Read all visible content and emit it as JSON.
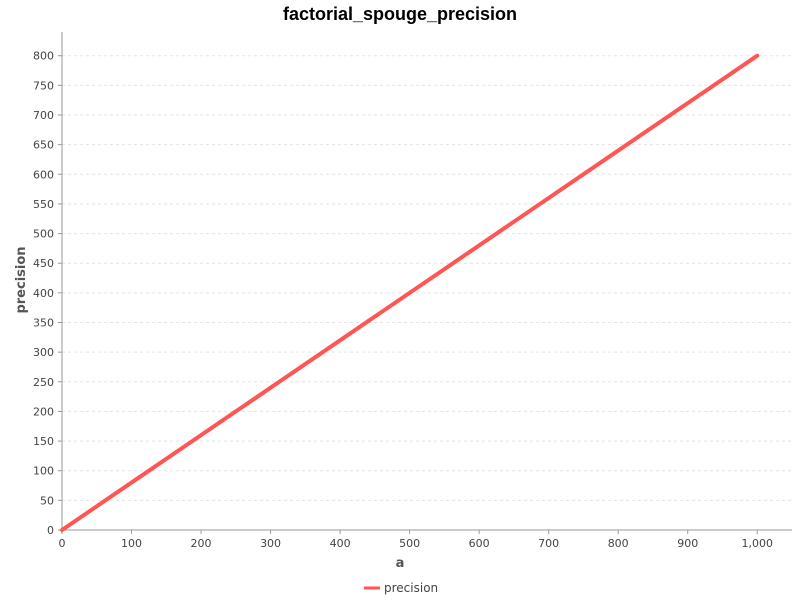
{
  "chart_data": {
    "type": "line",
    "title": "factorial_spouge_precision",
    "xlabel": "a",
    "ylabel": "precision",
    "xlim": [
      0,
      1050
    ],
    "ylim": [
      0,
      840
    ],
    "x_ticks": [
      0,
      100,
      200,
      300,
      400,
      500,
      600,
      700,
      800,
      900,
      1000
    ],
    "x_tick_labels": [
      "0",
      "100",
      "200",
      "300",
      "400",
      "500",
      "600",
      "700",
      "800",
      "900",
      "1,000"
    ],
    "y_ticks": [
      0,
      50,
      100,
      150,
      200,
      250,
      300,
      350,
      400,
      450,
      500,
      550,
      600,
      650,
      700,
      750,
      800
    ],
    "y_tick_labels": [
      "0",
      "50",
      "100",
      "150",
      "200",
      "250",
      "300",
      "350",
      "400",
      "450",
      "500",
      "550",
      "600",
      "650",
      "700",
      "750",
      "800"
    ],
    "grid": true,
    "legend_position": "bottom-center",
    "series": [
      {
        "name": "precision",
        "color": "#ff5555",
        "x": [
          0,
          100,
          200,
          300,
          400,
          500,
          600,
          700,
          800,
          900,
          1000
        ],
        "y": [
          0,
          80,
          160,
          240,
          320,
          400,
          480,
          560,
          640,
          720,
          800
        ]
      }
    ]
  }
}
